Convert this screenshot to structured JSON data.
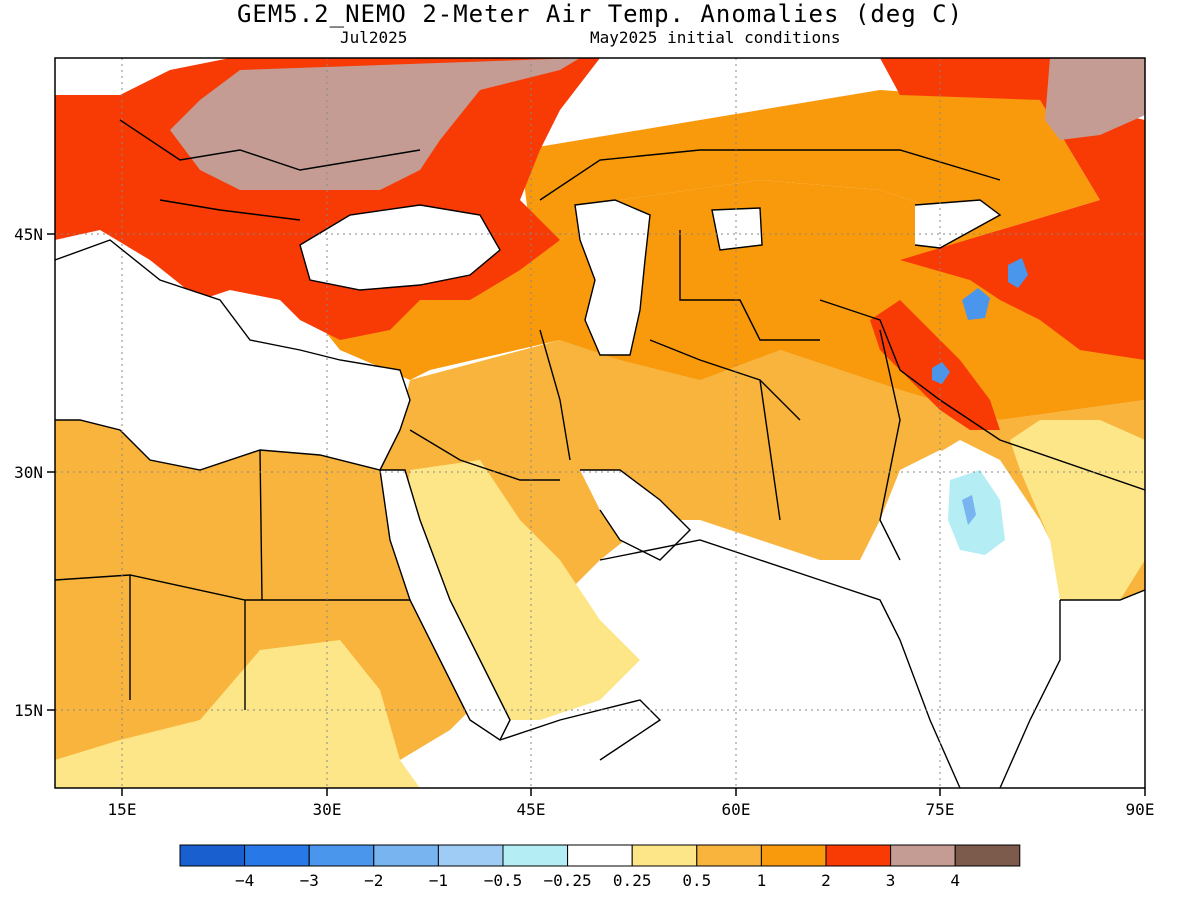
{
  "title": "GEM5.2_NEMO 2-Meter Air Temp. Anomalies (deg C)",
  "subtitle_left": "Jul2025",
  "subtitle_right": "May2025 initial conditions",
  "map": {
    "lon_range": [
      10,
      90
    ],
    "lat_range": [
      10,
      55
    ],
    "lon_ticks": [
      "15E",
      "30E",
      "45E",
      "60E",
      "75E",
      "90E"
    ],
    "lat_ticks": [
      "15N",
      "30N",
      "45N"
    ],
    "grid": "dotted"
  },
  "colorbar": {
    "colors": [
      "#1a5fcf",
      "#2878e8",
      "#4a96ec",
      "#78b4f0",
      "#9fccf4",
      "#b4eef4",
      "#ffffff",
      "#fde688",
      "#f8b43c",
      "#f89a0c",
      "#f83a04",
      "#c49c94",
      "#7c5a4c"
    ],
    "labels": [
      "-4",
      "-3",
      "-2",
      "-1",
      "-0.5",
      "-0.25",
      "0.25",
      "0.5",
      "1",
      "2",
      "3",
      "4"
    ]
  }
}
